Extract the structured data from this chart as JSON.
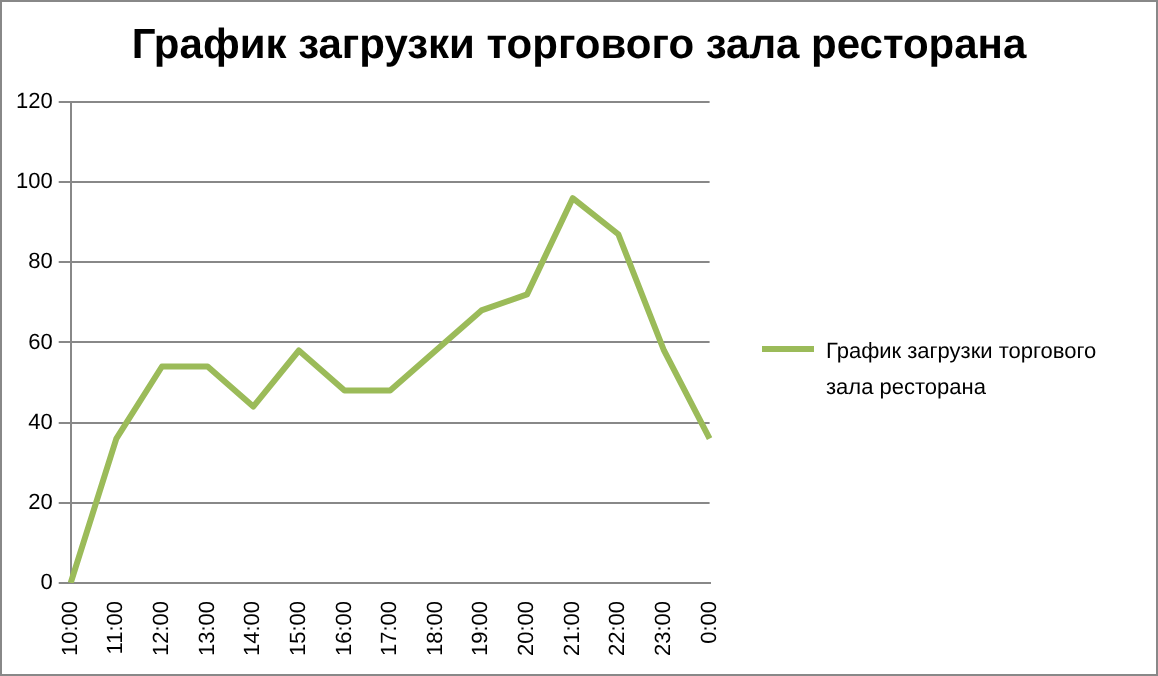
{
  "chart_data": {
    "type": "line",
    "title": "График загрузки торгового зала ресторана",
    "categories": [
      "10:00",
      "11:00",
      "12:00",
      "13:00",
      "14:00",
      "15:00",
      "16:00",
      "17:00",
      "18:00",
      "19:00",
      "20:00",
      "21:00",
      "22:00",
      "23:00",
      "0:00"
    ],
    "series": [
      {
        "name": "График загрузки торгового зала ресторана",
        "color": "#9bbb59",
        "values": [
          0,
          36,
          54,
          54,
          44,
          58,
          48,
          48,
          58,
          68,
          72,
          96,
          87,
          58,
          36
        ]
      }
    ],
    "ylim": [
      0,
      120
    ],
    "yticks": [
      0,
      20,
      40,
      60,
      80,
      100,
      120
    ],
    "grid": "y",
    "legend": "right",
    "marker": "none",
    "line_style": "solid"
  }
}
